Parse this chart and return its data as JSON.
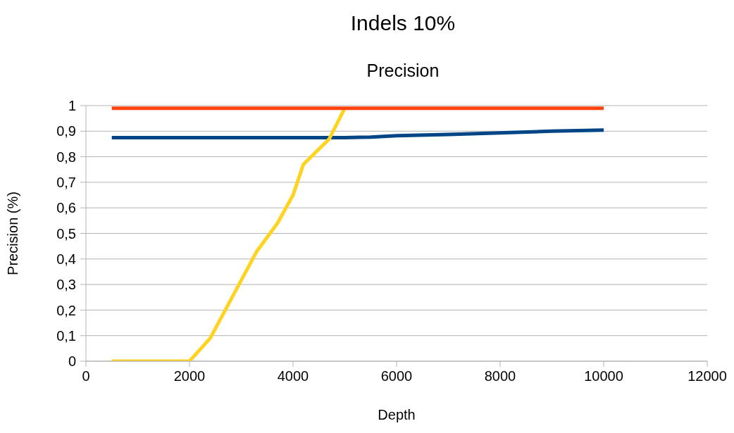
{
  "chart_data": {
    "type": "line",
    "title": "Indels 10%",
    "subtitle": "Precision",
    "xlabel": "Depth",
    "ylabel": "Precision (%)",
    "xlim": [
      0,
      12000
    ],
    "xticks": [
      0,
      2000,
      4000,
      6000,
      8000,
      10000,
      12000
    ],
    "ylim": [
      0,
      1
    ],
    "yticks": [
      {
        "value": 0,
        "label": "0"
      },
      {
        "value": 0.1,
        "label": "0,1"
      },
      {
        "value": 0.2,
        "label": "0,2"
      },
      {
        "value": 0.3,
        "label": "0,3"
      },
      {
        "value": 0.4,
        "label": "0,4"
      },
      {
        "value": 0.5,
        "label": "0,5"
      },
      {
        "value": 0.6,
        "label": "0,6"
      },
      {
        "value": 0.7,
        "label": "0,7"
      },
      {
        "value": 0.8,
        "label": "0,8"
      },
      {
        "value": 0.9,
        "label": "0,9"
      },
      {
        "value": 1,
        "label": "1"
      }
    ],
    "grid": "y",
    "legend": false,
    "marker": "none",
    "line_style": "solid",
    "series": [
      {
        "color": "#004586",
        "x": [
          500,
          5000,
          5500,
          6000,
          7000,
          8000,
          9000,
          10000
        ],
        "values": [
          0.875,
          0.875,
          0.877,
          0.882,
          0.887,
          0.893,
          0.9,
          0.904
        ]
      },
      {
        "color": "#ffd320",
        "x": [
          500,
          2000,
          2400,
          3300,
          3700,
          4000,
          4200,
          4700,
          5000
        ],
        "values": [
          0,
          0,
          0.09,
          0.43,
          0.54,
          0.65,
          0.77,
          0.87,
          0.99
        ]
      },
      {
        "color": "#ff420e",
        "x": [
          500,
          10000
        ],
        "values": [
          0.99,
          0.99
        ]
      }
    ]
  }
}
